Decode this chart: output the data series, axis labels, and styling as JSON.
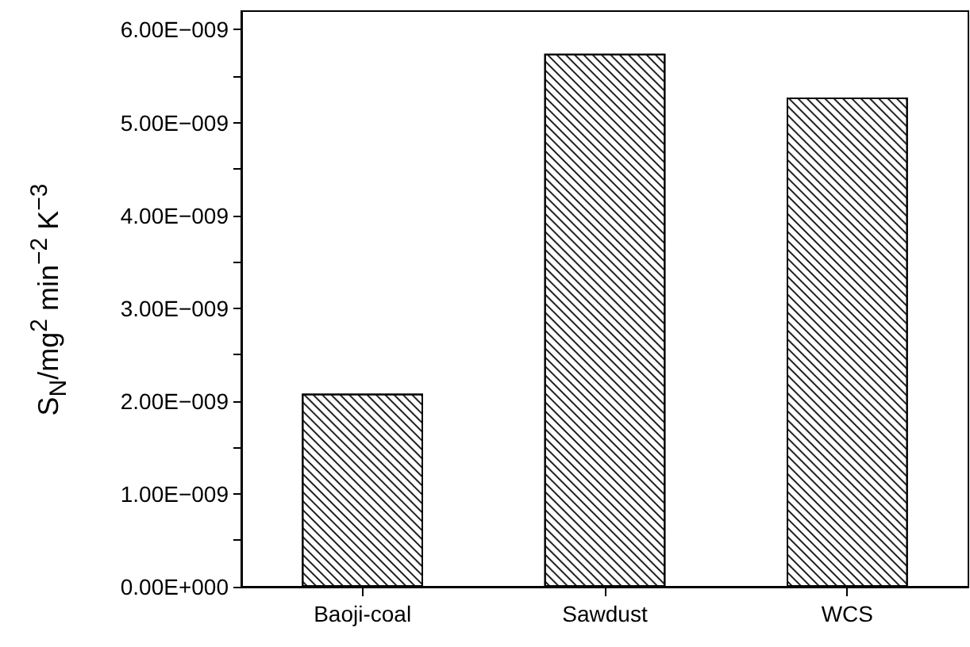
{
  "chart_data": {
    "type": "bar",
    "ylabel": "S$_{N}$/mg$^{2}$ min$^{−2}$ K$^{−3}$",
    "categories": [
      "Baoji-coal",
      "Sawdust",
      "WCS"
    ],
    "values": [
      2.08e-09,
      5.74e-09,
      5.27e-09
    ],
    "color": "#ffffff",
    "ylim": [
      0,
      6.2e-09
    ],
    "yticks": [
      {
        "value": 0,
        "label": "0.00E+000"
      },
      {
        "value": 5e-10,
        "label": null
      },
      {
        "value": 1e-09,
        "label": "1.00E−009"
      },
      {
        "value": 1.5e-09,
        "label": null
      },
      {
        "value": 2e-09,
        "label": "2.00E−009"
      },
      {
        "value": 2.5e-09,
        "label": null
      },
      {
        "value": 3e-09,
        "label": "3.00E−009"
      },
      {
        "value": 3.5e-09,
        "label": null
      },
      {
        "value": 4e-09,
        "label": "4.00E−009"
      },
      {
        "value": 4.5e-09,
        "label": null
      },
      {
        "value": 5e-09,
        "label": "5.00E−009"
      },
      {
        "value": 5.5e-09,
        "label": null
      },
      {
        "value": 6e-09,
        "label": "6.00E−009"
      }
    ],
    "grid": false
  }
}
